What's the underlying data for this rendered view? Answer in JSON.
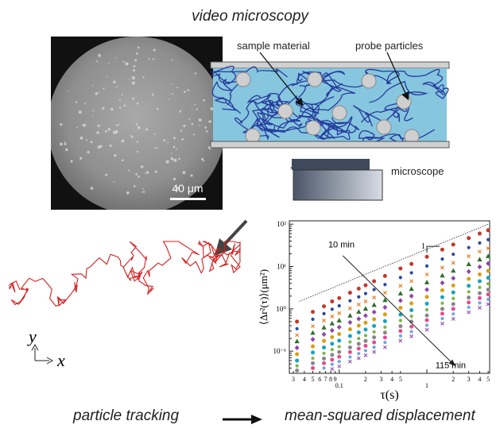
{
  "title": "video microscopy",
  "micrograph": {
    "scale_bar_label": "40 μm"
  },
  "schematic": {
    "sample_label": "sample material",
    "probe_label": "probe particles",
    "microscope_label": "microscope"
  },
  "trajectory": {
    "y_axis_label": "y",
    "x_axis_label": "x"
  },
  "captions": {
    "left": "particle tracking",
    "right": "mean-squared displacement"
  },
  "chart_data": {
    "type": "scatter",
    "title": "",
    "xlabel": "τ(s)",
    "ylabel": "⟨Δr²(τ)⟩(μm²)",
    "xscale": "log",
    "yscale": "log",
    "xlim": [
      0.027,
      5.2
    ],
    "ylim": [
      0.03,
      120
    ],
    "grid": false,
    "x_major_ticks": [
      {
        "value": 0.1,
        "label": "0.1"
      },
      {
        "value": 1,
        "label": "1"
      }
    ],
    "x_minor_tick_labels": [
      {
        "value": 0.03,
        "label": "3"
      },
      {
        "value": 0.04,
        "label": "4"
      },
      {
        "value": 0.05,
        "label": "5"
      },
      {
        "value": 0.06,
        "label": "6"
      },
      {
        "value": 0.07,
        "label": "7"
      },
      {
        "value": 0.08,
        "label": "8"
      },
      {
        "value": 0.09,
        "label": "9"
      },
      {
        "value": 0.2,
        "label": "2"
      },
      {
        "value": 0.3,
        "label": "3"
      },
      {
        "value": 0.4,
        "label": "4"
      },
      {
        "value": 0.5,
        "label": "5"
      },
      {
        "value": 2,
        "label": "2"
      },
      {
        "value": 3,
        "label": "3"
      },
      {
        "value": 4,
        "label": "4"
      },
      {
        "value": 5,
        "label": "5"
      }
    ],
    "y_ticks": [
      {
        "value": 0.1,
        "label": "10⁻¹"
      },
      {
        "value": 1,
        "label": "10⁰"
      },
      {
        "value": 10,
        "label": "10¹"
      },
      {
        "value": 100,
        "label": "10²"
      }
    ],
    "annotations": {
      "start_label": "10 min",
      "end_label": "115 min",
      "slope_label": "1"
    },
    "reference_line": {
      "slope": 1,
      "points": [
        [
          0.035,
          1.5
        ],
        [
          5,
          100
        ]
      ]
    },
    "x": [
      0.033,
      0.05,
      0.067,
      0.083,
      0.1,
      0.133,
      0.167,
      0.2,
      0.25,
      0.333,
      0.5,
      0.667,
      1,
      1.5,
      2,
      3,
      4,
      5
    ],
    "series": [
      {
        "color": "#c0392b",
        "marker": "circle",
        "values": [
          0.5,
          0.85,
          1.15,
          1.5,
          1.8,
          2.4,
          3.0,
          3.6,
          4.5,
          6.0,
          9.0,
          11.5,
          17,
          25,
          33,
          47,
          60,
          72
        ]
      },
      {
        "color": "#2c4a9a",
        "marker": "circle",
        "values": [
          0.34,
          0.57,
          0.77,
          0.98,
          1.18,
          1.55,
          1.92,
          2.3,
          2.85,
          3.75,
          5.5,
          7.1,
          10.3,
          15,
          19.5,
          28,
          36,
          43
        ]
      },
      {
        "color": "#e67e22",
        "marker": "cross",
        "values": [
          0.24,
          0.39,
          0.53,
          0.66,
          0.79,
          1.03,
          1.27,
          1.5,
          1.85,
          2.4,
          3.5,
          4.5,
          6.5,
          9.4,
          12.2,
          17.5,
          22.5,
          27
        ]
      },
      {
        "color": "#2e6e2e",
        "marker": "triangle",
        "values": [
          0.17,
          0.27,
          0.36,
          0.45,
          0.53,
          0.69,
          0.85,
          1.0,
          1.23,
          1.6,
          2.3,
          2.95,
          4.2,
          6.1,
          7.9,
          11.3,
          14.6,
          17.5
        ]
      },
      {
        "color": "#8e44ad",
        "marker": "diamond",
        "values": [
          0.12,
          0.19,
          0.25,
          0.31,
          0.37,
          0.48,
          0.58,
          0.69,
          0.84,
          1.09,
          1.57,
          2.0,
          2.85,
          4.1,
          5.3,
          7.6,
          9.8,
          11.8
        ]
      },
      {
        "color": "#d4a017",
        "marker": "circle",
        "values": [
          0.085,
          0.13,
          0.175,
          0.215,
          0.255,
          0.33,
          0.4,
          0.47,
          0.57,
          0.74,
          1.06,
          1.35,
          1.92,
          2.75,
          3.55,
          5.1,
          6.5,
          7.9
        ]
      },
      {
        "color": "#1aa3b8",
        "marker": "circle",
        "values": [
          0.06,
          0.093,
          0.122,
          0.15,
          0.177,
          0.228,
          0.277,
          0.325,
          0.395,
          0.51,
          0.73,
          0.93,
          1.32,
          1.89,
          2.45,
          3.5,
          4.5,
          5.4
        ]
      },
      {
        "color": "#7ab648",
        "marker": "circle",
        "values": [
          0.045,
          0.068,
          0.089,
          0.109,
          0.128,
          0.165,
          0.2,
          0.235,
          0.285,
          0.37,
          0.53,
          0.67,
          0.95,
          1.36,
          1.76,
          2.52,
          3.2,
          3.9
        ]
      },
      {
        "color": "#888888",
        "marker": "circle",
        "values": [
          0.035,
          0.052,
          0.067,
          0.082,
          0.096,
          0.123,
          0.149,
          0.175,
          0.212,
          0.275,
          0.39,
          0.5,
          0.7,
          1.0,
          1.3,
          1.85,
          2.35,
          2.85
        ]
      },
      {
        "color": "#e74c8c",
        "marker": "circle",
        "values": [
          null,
          0.04,
          0.052,
          0.063,
          0.074,
          0.095,
          0.115,
          0.134,
          0.162,
          0.21,
          0.3,
          0.38,
          0.54,
          0.77,
          1.0,
          1.42,
          1.8,
          2.2
        ]
      },
      {
        "color": "#6fa8dc",
        "marker": "circle",
        "values": [
          null,
          null,
          0.04,
          0.049,
          0.057,
          0.073,
          0.088,
          0.103,
          0.124,
          0.161,
          0.23,
          0.29,
          0.41,
          0.59,
          0.76,
          1.09,
          1.38,
          1.68
        ]
      },
      {
        "color": "#9b59b6",
        "marker": "cross",
        "values": [
          null,
          null,
          null,
          0.038,
          0.044,
          0.057,
          0.068,
          0.08,
          0.096,
          0.124,
          0.177,
          0.224,
          0.32,
          0.45,
          0.58,
          0.83,
          1.06,
          1.29
        ]
      }
    ]
  }
}
